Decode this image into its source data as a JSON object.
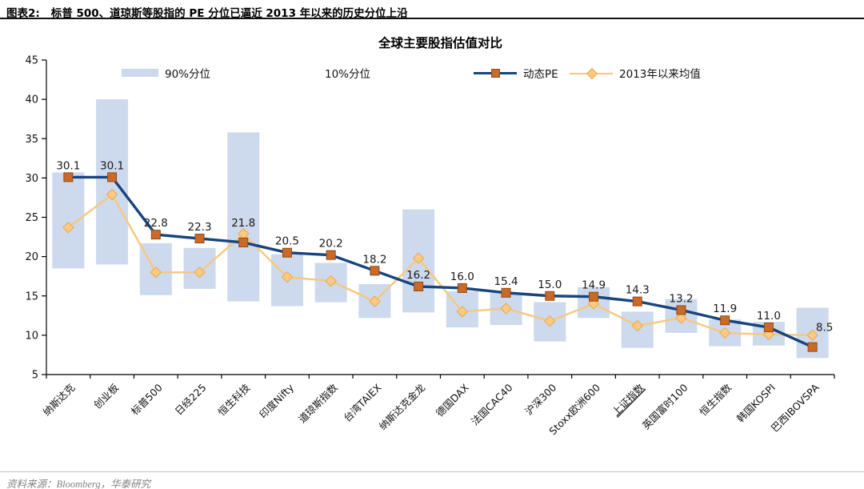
{
  "header": {
    "tag": "图表2:",
    "title": "标普 500、道琼斯等股指的 PE 分位已逼近 2013 年以来的历史分位上沿"
  },
  "footer": {
    "source": "资料来源：Bloomberg，华泰研究"
  },
  "colors": {
    "band": "#cdd9ec",
    "pe_line": "#17457e",
    "pe_marker": "#cb6a28",
    "pe_marker_border": "#8f4a18",
    "mean_line": "#f7c87f",
    "mean_marker": "#fbca80",
    "mean_marker_border": "#eaa84f",
    "axis": "#000000",
    "label_text": "#1a1a1a",
    "header_rule": "#111111",
    "footer_rule": "#aec3dc",
    "footer_text": "#828282"
  },
  "chart_data": {
    "type": "combo",
    "title": "全球主要股指估值对比",
    "legend": [
      "90%分位",
      "10%分位",
      "动态PE",
      "2013年以来均值"
    ],
    "legend_position": "top",
    "grid": false,
    "ylim": [
      5,
      45
    ],
    "yticks": [
      45,
      40,
      35,
      30,
      25,
      20,
      15,
      10,
      5
    ],
    "categories": [
      "纳斯达克",
      "创业板",
      "标普500",
      "日经225",
      "恒生科技",
      "印度Nifty",
      "道琼斯指数",
      "台湾TAIEX",
      "纳斯达克金龙",
      "德国DAX",
      "法国CAC40",
      "沪深300",
      "Stoxx欧洲600",
      "上证指数",
      "英国富时100",
      "恒生指数",
      "韩国KOSPI",
      "巴西IBOVSPA"
    ],
    "underlined_categories": [
      "上证指数"
    ],
    "band_high_90pct": [
      30.7,
      40.0,
      21.7,
      21.1,
      35.8,
      20.3,
      19.2,
      16.5,
      26.0,
      15.6,
      15.4,
      14.2,
      16.1,
      13.0,
      14.6,
      12.0,
      11.7,
      13.5
    ],
    "band_low_10pct": [
      18.5,
      19.0,
      15.1,
      15.9,
      14.3,
      13.7,
      14.2,
      12.2,
      12.9,
      11.0,
      11.3,
      9.2,
      12.2,
      8.4,
      10.3,
      8.6,
      8.7,
      7.1
    ],
    "series": [
      {
        "name": "动态PE",
        "type": "line",
        "values": [
          30.1,
          30.1,
          22.8,
          22.3,
          21.8,
          20.5,
          20.2,
          18.2,
          16.2,
          16.0,
          15.4,
          15.0,
          14.9,
          14.3,
          13.2,
          11.9,
          11.0,
          8.5
        ]
      },
      {
        "name": "2013年以来均值",
        "type": "line",
        "values": [
          23.7,
          27.9,
          18.0,
          18.0,
          22.9,
          17.4,
          16.9,
          14.3,
          19.8,
          13.0,
          13.4,
          11.8,
          14.0,
          11.2,
          12.2,
          10.3,
          10.1,
          10.0
        ]
      }
    ],
    "data_labels_series": "动态PE"
  }
}
